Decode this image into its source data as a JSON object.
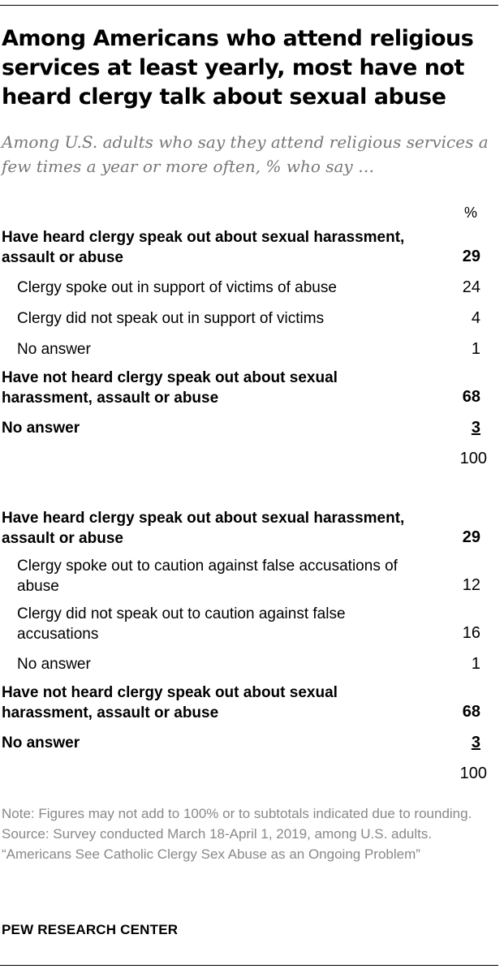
{
  "title": "Among Americans who attend religious services at least yearly, most have not heard clergy talk about sexual abuse",
  "subtitle": "Among U.S. adults who say they attend religious services a few times a year or more often, % who say …",
  "column_header": "%",
  "chart_data": {
    "type": "table",
    "title": "Among Americans who attend religious services at least yearly, most have not heard clergy talk about sexual abuse",
    "subtitle": "Among U.S. adults who say they attend religious services a few times a year or more often, % who say …",
    "unit": "%",
    "sections": [
      {
        "rows": [
          {
            "label": "Have heard clergy speak out about sexual harassment, assault or abuse",
            "value": "29",
            "level": 0
          },
          {
            "label": "Clergy spoke out in support of victims of abuse",
            "value": "24",
            "level": 1
          },
          {
            "label": "Clergy did not speak out in support of victims",
            "value": "4",
            "level": 1
          },
          {
            "label": "No answer",
            "value": "1",
            "level": 1
          },
          {
            "label": "Have not heard clergy speak out about sexual harassment, assault or abuse",
            "value": "68",
            "level": 0
          },
          {
            "label": "No answer",
            "value": "3",
            "level": 0
          }
        ],
        "total": "100"
      },
      {
        "rows": [
          {
            "label": "Have heard clergy speak out about sexual harassment, assault or abuse",
            "value": "29",
            "level": 0
          },
          {
            "label": "Clergy spoke out to caution against false accusations of abuse",
            "value": "12",
            "level": 1
          },
          {
            "label": "Clergy did not speak out to caution against false accusations",
            "value": "16",
            "level": 1
          },
          {
            "label": "No answer",
            "value": "1",
            "level": 1
          },
          {
            "label": "Have not heard clergy speak out about sexual harassment, assault or abuse",
            "value": "68",
            "level": 0
          },
          {
            "label": "No answer",
            "value": "3",
            "level": 0
          }
        ],
        "total": "100"
      }
    ]
  },
  "note": "Note: Figures may not add to 100% or to subtotals indicated due to rounding.",
  "source": "Source: Survey conducted March 18-April 1, 2019, among U.S. adults.",
  "report_title": "“Americans See Catholic Clergy Sex Abuse as an Ongoing Problem”",
  "organization": "PEW RESEARCH CENTER"
}
